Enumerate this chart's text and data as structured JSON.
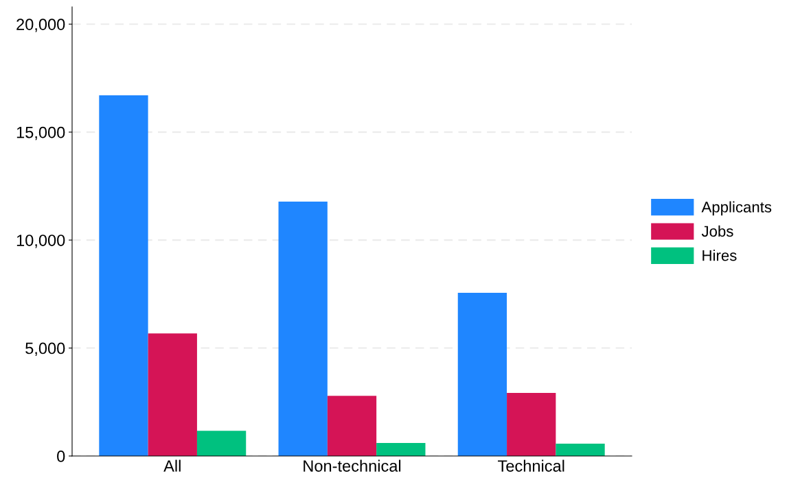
{
  "chart_data": {
    "type": "bar",
    "categories": [
      "All",
      "Non-technical",
      "Technical"
    ],
    "series": [
      {
        "name": "Applicants",
        "color": "#1f86ff",
        "values": [
          16700,
          11780,
          7560
        ]
      },
      {
        "name": "Jobs",
        "color": "#d51456",
        "values": [
          5680,
          2790,
          2920
        ]
      },
      {
        "name": "Hires",
        "color": "#00c17f",
        "values": [
          1170,
          600,
          570
        ]
      }
    ],
    "ylim": [
      0,
      20800
    ],
    "yticks": [
      {
        "value": 0,
        "label": "0"
      },
      {
        "value": 5000,
        "label": "5,000"
      },
      {
        "value": 10000,
        "label": "10,000"
      },
      {
        "value": 15000,
        "label": "15,000"
      },
      {
        "value": 20000,
        "label": "20,000"
      }
    ],
    "grid": "y",
    "legend": "right"
  }
}
